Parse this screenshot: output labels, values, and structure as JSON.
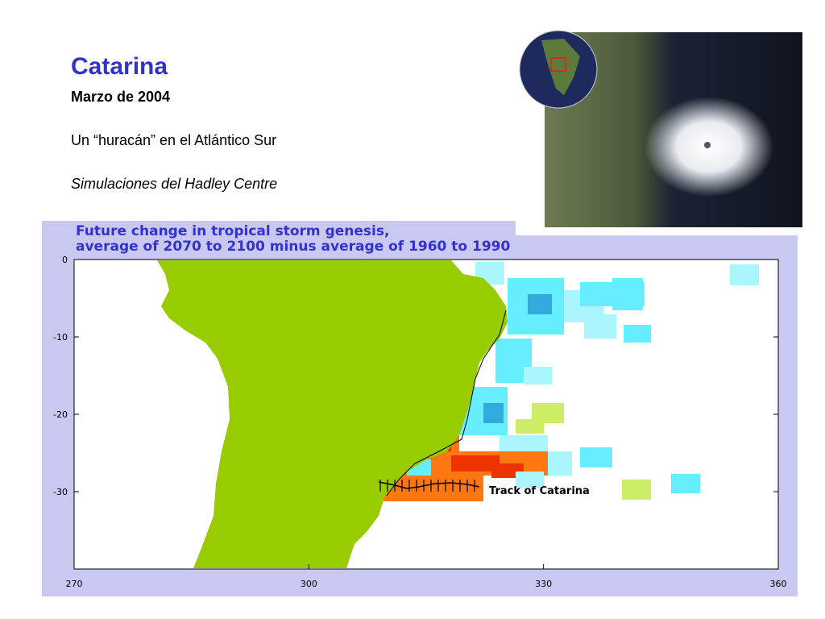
{
  "slide": {
    "title": "Catarina",
    "subtitle": "Marzo de 2004",
    "line": "Un “huracán” en el Atlántico Sur",
    "source": "Simulaciones del Hadley Centre"
  },
  "chart_data": {
    "type": "map",
    "title": [
      "Future change in tropical storm genesis,",
      "average of 2070 to 2100 minus average of 1960 to 1990"
    ],
    "annotation": "Track of Catarina",
    "xlim": [
      270,
      360
    ],
    "xticks": [
      270,
      300,
      330,
      360
    ],
    "ylim": [
      -40,
      0
    ],
    "yticks": [
      0,
      -10,
      -20,
      -30
    ]
  }
}
